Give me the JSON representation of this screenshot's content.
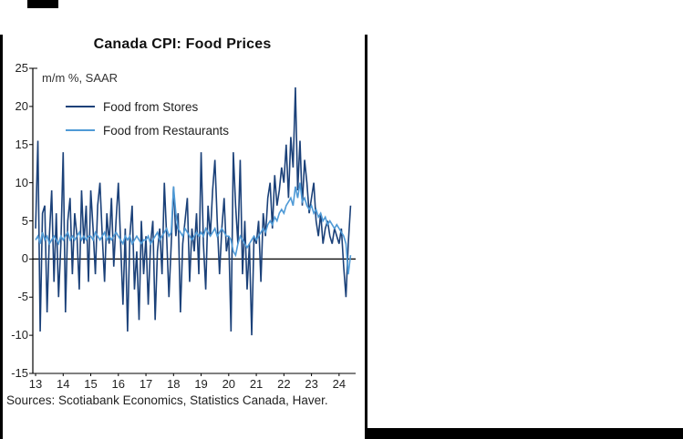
{
  "footer": {
    "source_note": "Sources: Scotiabank Economics, Statistics Canada, Haver."
  },
  "chart_data": {
    "type": "line",
    "title": "Canada CPI: Food Prices",
    "units_label": "m/m %, SAAR",
    "xlabel": "",
    "ylabel": "m/m %, SAAR",
    "ylim": [
      -15,
      25
    ],
    "y_ticks": [
      25,
      20,
      15,
      10,
      5,
      0,
      -5,
      -10,
      -15
    ],
    "x_ticks": [
      "13",
      "14",
      "15",
      "16",
      "17",
      "18",
      "19",
      "20",
      "21",
      "22",
      "23",
      "24"
    ],
    "x_start": 2013.0,
    "x_step_months": 1,
    "grid": false,
    "zero_line": true,
    "legend_position": "top-left",
    "axis_color": "#000000",
    "series": [
      {
        "name": "Food from Stores",
        "color": "#1b4179",
        "values": [
          4,
          15.5,
          -9.5,
          6,
          7,
          -7,
          3,
          9,
          -3,
          6,
          -5,
          2,
          14,
          -7,
          5,
          8,
          -2,
          6,
          3,
          -4,
          9,
          2,
          7,
          -3,
          9,
          4,
          -2,
          7,
          10,
          3,
          -3,
          6,
          2,
          8,
          -1,
          5,
          10,
          2,
          -6,
          4,
          -9.5,
          3,
          7,
          -4,
          1,
          -8,
          5,
          -2,
          3,
          -6,
          2,
          5,
          -8,
          1,
          4,
          -2,
          10,
          3,
          -5,
          2,
          9.5,
          3,
          6,
          -7,
          2,
          5,
          8,
          -3,
          4,
          1,
          6,
          -2,
          14,
          2,
          -4,
          7,
          3,
          9,
          13,
          5,
          -2,
          4,
          8,
          1,
          3,
          -9.5,
          14,
          7,
          2,
          13,
          -2,
          5,
          -4,
          2,
          -10,
          3,
          2,
          5,
          -3,
          6,
          3,
          8,
          10,
          4,
          11,
          7,
          9,
          12,
          10,
          15,
          8,
          16,
          12,
          22.5,
          9,
          15.5,
          7,
          13,
          10,
          6,
          8,
          10,
          5,
          3,
          6,
          2,
          4,
          5,
          3,
          2,
          4,
          3,
          2,
          4,
          -1,
          -5,
          2,
          7
        ]
      },
      {
        "name": "Food from Restaurants",
        "color": "#4f9ad6",
        "values": [
          2.5,
          3,
          2,
          3.5,
          2.5,
          3,
          2,
          2.5,
          3,
          2.5,
          2,
          3,
          2.5,
          3,
          3.5,
          2.5,
          3,
          2.5,
          3,
          3.5,
          2.5,
          3,
          2.5,
          3,
          3,
          2.5,
          3.5,
          3,
          2.5,
          3,
          3.5,
          2.5,
          3,
          2.5,
          3,
          3.5,
          3,
          2.5,
          2,
          3,
          2.5,
          3,
          2,
          2.5,
          3,
          2.5,
          2,
          2.5,
          2.5,
          3,
          2,
          2.5,
          3,
          3.5,
          2.5,
          3,
          3.5,
          4,
          3,
          3.5,
          9.5,
          6,
          4,
          3.5,
          3,
          4,
          3.5,
          3,
          2.5,
          3,
          3.5,
          3,
          3.5,
          3,
          4,
          3.5,
          3,
          3.5,
          4,
          3,
          3.5,
          4,
          3.5,
          3,
          3,
          2.5,
          1,
          0.5,
          2,
          3,
          2.5,
          2,
          1.5,
          2,
          2.5,
          3,
          2.5,
          3,
          3.5,
          4,
          3.5,
          4.5,
          5,
          4.5,
          5.5,
          5,
          6,
          6.5,
          6,
          7,
          7.5,
          8,
          7,
          9.5,
          8,
          10,
          7.5,
          8,
          7,
          6.5,
          7,
          6,
          6.5,
          5.5,
          6,
          5,
          5.5,
          4.5,
          5,
          4.5,
          4,
          4.5,
          4,
          3.5,
          3,
          2,
          -2,
          0.5
        ]
      }
    ]
  }
}
